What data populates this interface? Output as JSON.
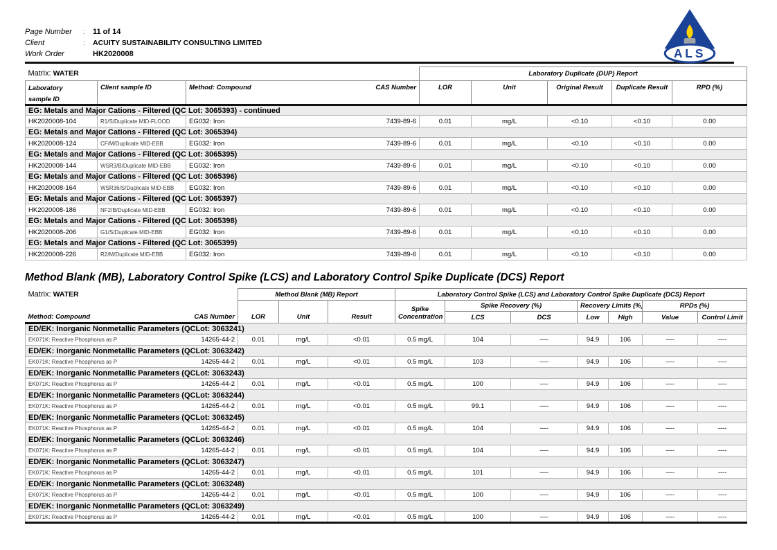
{
  "page_header": {
    "fields": [
      {
        "label": "Page Number",
        "sep": ":",
        "value": "11 of 14"
      },
      {
        "label": "Client",
        "sep": ":",
        "value": "ACUITY SUSTAINABILITY CONSULTING LIMITED"
      },
      {
        "label": "Work Order",
        "sep": "",
        "value": "HK2020008"
      }
    ],
    "logo_text": "ALS"
  },
  "colors": {
    "logo_blue": "#1A4297",
    "logo_yellow": "#FFD301",
    "logo_gray": "#9FA3A7",
    "band_gray": "#ECECEC"
  },
  "dup_table": {
    "matrix_label": "Matrix:",
    "matrix_value": "WATER",
    "span_header": "Laboratory Duplicate (DUP) Report",
    "columns": {
      "lab_line1": "Laboratory",
      "lab_line2": "sample ID",
      "client": "Client sample ID",
      "method": "Method:  Compound",
      "cas": "CAS Number",
      "lor": "LOR",
      "unit": "Unit",
      "original": "Original Result",
      "duplicate": "Duplicate Result",
      "rpd": "RPD (%)"
    },
    "sections": [
      {
        "title": "EG: Metals and Major Cations - Filtered  (QC Lot: 3065393)  - continued",
        "rows": [
          {
            "lab_id": "HK2020008-104",
            "client_id": "R1/S/Duplicate MID-FLOOD",
            "method": "EG032: Iron",
            "cas": "7439-89-6",
            "lor": "0.01",
            "unit": "mg/L",
            "original": "<0.10",
            "duplicate": "<0.10",
            "rpd": "0.00"
          }
        ]
      },
      {
        "title": "EG: Metals and Major Cations - Filtered  (QC Lot: 3065394)",
        "rows": [
          {
            "lab_id": "HK2020008-124",
            "client_id": "CF/M/Duplicate MID-EBB",
            "method": "EG032: Iron",
            "cas": "7439-89-6",
            "lor": "0.01",
            "unit": "mg/L",
            "original": "<0.10",
            "duplicate": "<0.10",
            "rpd": "0.00"
          }
        ]
      },
      {
        "title": "EG: Metals and Major Cations - Filtered  (QC Lot: 3065395)",
        "rows": [
          {
            "lab_id": "HK2020008-144",
            "client_id": "WSR3/B/Duplicate MID-EBB",
            "method": "EG032: Iron",
            "cas": "7439-89-6",
            "lor": "0.01",
            "unit": "mg/L",
            "original": "<0.10",
            "duplicate": "<0.10",
            "rpd": "0.00"
          }
        ]
      },
      {
        "title": "EG: Metals and Major Cations - Filtered  (QC Lot: 3065396)",
        "rows": [
          {
            "lab_id": "HK2020008-164",
            "client_id": "WSR36/S/Duplicate MID-EBB",
            "method": "EG032: Iron",
            "cas": "7439-89-6",
            "lor": "0.01",
            "unit": "mg/L",
            "original": "<0.10",
            "duplicate": "<0.10",
            "rpd": "0.00"
          }
        ]
      },
      {
        "title": "EG: Metals and Major Cations - Filtered  (QC Lot: 3065397)",
        "rows": [
          {
            "lab_id": "HK2020008-186",
            "client_id": "NF2/B/Duplicate MID-EBB",
            "method": "EG032: Iron",
            "cas": "7439-89-6",
            "lor": "0.01",
            "unit": "mg/L",
            "original": "<0.10",
            "duplicate": "<0.10",
            "rpd": "0.00"
          }
        ]
      },
      {
        "title": "EG: Metals and Major Cations - Filtered  (QC Lot: 3065398)",
        "rows": [
          {
            "lab_id": "HK2020008-206",
            "client_id": "G1/S/Duplicate MID-EBB",
            "method": "EG032: Iron",
            "cas": "7439-89-6",
            "lor": "0.01",
            "unit": "mg/L",
            "original": "<0.10",
            "duplicate": "<0.10",
            "rpd": "0.00"
          }
        ]
      },
      {
        "title": "EG: Metals and Major Cations - Filtered  (QC Lot: 3065399)",
        "rows": [
          {
            "lab_id": "HK2020008-226",
            "client_id": "R2/M/Duplicate MID-EBB",
            "method": "EG032: Iron",
            "cas": "7439-89-6",
            "lor": "0.01",
            "unit": "mg/L",
            "original": "<0.10",
            "duplicate": "<0.10",
            "rpd": "0.00"
          }
        ]
      }
    ]
  },
  "mb_report": {
    "title": "Method Blank (MB), Laboratory Control Spike (LCS) and Laboratory Control Spike Duplicate (DCS) Report",
    "matrix_label": "Matrix:",
    "matrix_value": "WATER",
    "mb_span": "Method Blank (MB) Report",
    "lcs_span": "Laboratory Control Spike (LCS) and Laboratory Control Spike Duplicate (DCS) Report",
    "columns": {
      "method": "Method: Compound",
      "cas": "CAS Number",
      "lor": "LOR",
      "unit": "Unit",
      "result": "Result",
      "spike_line1": "Spike",
      "spike_line2": "Concentration",
      "recovery": "Spike Recovery (%)",
      "lcs": "LCS",
      "dcs": "DCS",
      "limits": "Recovery Limits (%)",
      "low": "Low",
      "high": "High",
      "rpds": "RPDs (%)",
      "value": "Value",
      "control_limit": "Control Limit"
    },
    "sections": [
      {
        "title": "ED/EK: Inorganic Nonmetallic Parameters  (QCLot: 3063241)",
        "rows": [
          {
            "method": "EK071K: Reactive Phosphorus as P",
            "cas": "14265-44-2",
            "lor": "0.01",
            "unit": "mg/L",
            "result": "<0.01",
            "spike": "0.5 mg/L",
            "lcs": "104",
            "dcs": "----",
            "low": "94.9",
            "high": "106",
            "value": "----",
            "control": "----"
          }
        ]
      },
      {
        "title": "ED/EK: Inorganic Nonmetallic Parameters  (QCLot: 3063242)",
        "rows": [
          {
            "method": "EK071K: Reactive Phosphorus as P",
            "cas": "14265-44-2",
            "lor": "0.01",
            "unit": "mg/L",
            "result": "<0.01",
            "spike": "0.5 mg/L",
            "lcs": "103",
            "dcs": "----",
            "low": "94.9",
            "high": "106",
            "value": "----",
            "control": "----"
          }
        ]
      },
      {
        "title": "ED/EK: Inorganic Nonmetallic Parameters  (QCLot: 3063243)",
        "rows": [
          {
            "method": "EK071K: Reactive Phosphorus as P",
            "cas": "14265-44-2",
            "lor": "0.01",
            "unit": "mg/L",
            "result": "<0.01",
            "spike": "0.5 mg/L",
            "lcs": "100",
            "dcs": "----",
            "low": "94.9",
            "high": "106",
            "value": "----",
            "control": "----"
          }
        ]
      },
      {
        "title": "ED/EK: Inorganic Nonmetallic Parameters  (QCLot: 3063244)",
        "rows": [
          {
            "method": "EK071K: Reactive Phosphorus as P",
            "cas": "14265-44-2",
            "lor": "0.01",
            "unit": "mg/L",
            "result": "<0.01",
            "spike": "0.5 mg/L",
            "lcs": "99.1",
            "dcs": "----",
            "low": "94.9",
            "high": "106",
            "value": "----",
            "control": "----"
          }
        ]
      },
      {
        "title": "ED/EK: Inorganic Nonmetallic Parameters  (QCLot: 3063245)",
        "rows": [
          {
            "method": "EK071K: Reactive Phosphorus as P",
            "cas": "14265-44-2",
            "lor": "0.01",
            "unit": "mg/L",
            "result": "<0.01",
            "spike": "0.5 mg/L",
            "lcs": "104",
            "dcs": "----",
            "low": "94.9",
            "high": "106",
            "value": "----",
            "control": "----"
          }
        ]
      },
      {
        "title": "ED/EK: Inorganic Nonmetallic Parameters  (QCLot: 3063246)",
        "rows": [
          {
            "method": "EK071K: Reactive Phosphorus as P",
            "cas": "14265-44-2",
            "lor": "0.01",
            "unit": "mg/L",
            "result": "<0.01",
            "spike": "0.5 mg/L",
            "lcs": "104",
            "dcs": "----",
            "low": "94.9",
            "high": "106",
            "value": "----",
            "control": "----"
          }
        ]
      },
      {
        "title": "ED/EK: Inorganic Nonmetallic Parameters  (QCLot: 3063247)",
        "rows": [
          {
            "method": "EK071K: Reactive Phosphorus as P",
            "cas": "14265-44-2",
            "lor": "0.01",
            "unit": "mg/L",
            "result": "<0.01",
            "spike": "0.5 mg/L",
            "lcs": "101",
            "dcs": "----",
            "low": "94.9",
            "high": "106",
            "value": "----",
            "control": "----"
          }
        ]
      },
      {
        "title": "ED/EK: Inorganic Nonmetallic Parameters  (QCLot: 3063248)",
        "rows": [
          {
            "method": "EK071K: Reactive Phosphorus as P",
            "cas": "14265-44-2",
            "lor": "0.01",
            "unit": "mg/L",
            "result": "<0.01",
            "spike": "0.5 mg/L",
            "lcs": "100",
            "dcs": "----",
            "low": "94.9",
            "high": "106",
            "value": "----",
            "control": "----"
          }
        ]
      },
      {
        "title": "ED/EK: Inorganic Nonmetallic Parameters  (QCLot: 3063249)",
        "rows": [
          {
            "method": "EK071K: Reactive Phosphorus as P",
            "cas": "14265-44-2",
            "lor": "0.01",
            "unit": "mg/L",
            "result": "<0.01",
            "spike": "0.5 mg/L",
            "lcs": "100",
            "dcs": "----",
            "low": "94.9",
            "high": "106",
            "value": "----",
            "control": "----"
          }
        ]
      }
    ]
  }
}
